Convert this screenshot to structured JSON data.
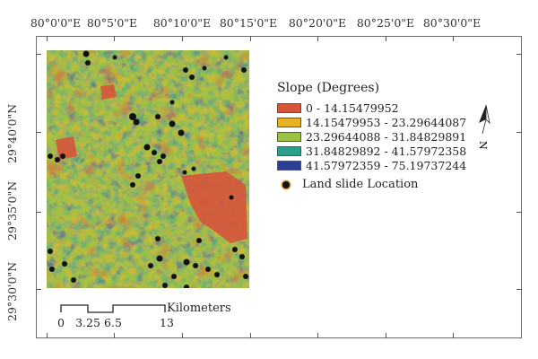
{
  "map": {
    "top_ticks": [
      "80°0'0\"E",
      "80°5'0\"E",
      "80°10'0\"E",
      "80°15'0\"E",
      "80°20'0\"E",
      "80°25'0\"E",
      "80°30'0\"E"
    ],
    "left_ticks": [
      "29°40'0\"N",
      "29°35'0\"N",
      "29°30'0\"N"
    ]
  },
  "legend": {
    "title": "Slope (Degrees)",
    "classes": [
      {
        "label": "0 - 14.15479952",
        "color": "#d6543a"
      },
      {
        "label": "14.15479953 - 23.29644087",
        "color": "#e8b223"
      },
      {
        "label": "23.29644088 - 31.84829891",
        "color": "#9bc244"
      },
      {
        "label": "31.84829892 - 41.57972358",
        "color": "#2aa08b"
      },
      {
        "label": "41.57972359 - 75.19737244",
        "color": "#2a3f93"
      }
    ],
    "landslide_label": "Land slide Location"
  },
  "north_arrow": {
    "letter": "N"
  },
  "scale_bar": {
    "labels": [
      "0",
      "3.25",
      "6.5",
      "13"
    ],
    "unit": "Kilometers"
  }
}
